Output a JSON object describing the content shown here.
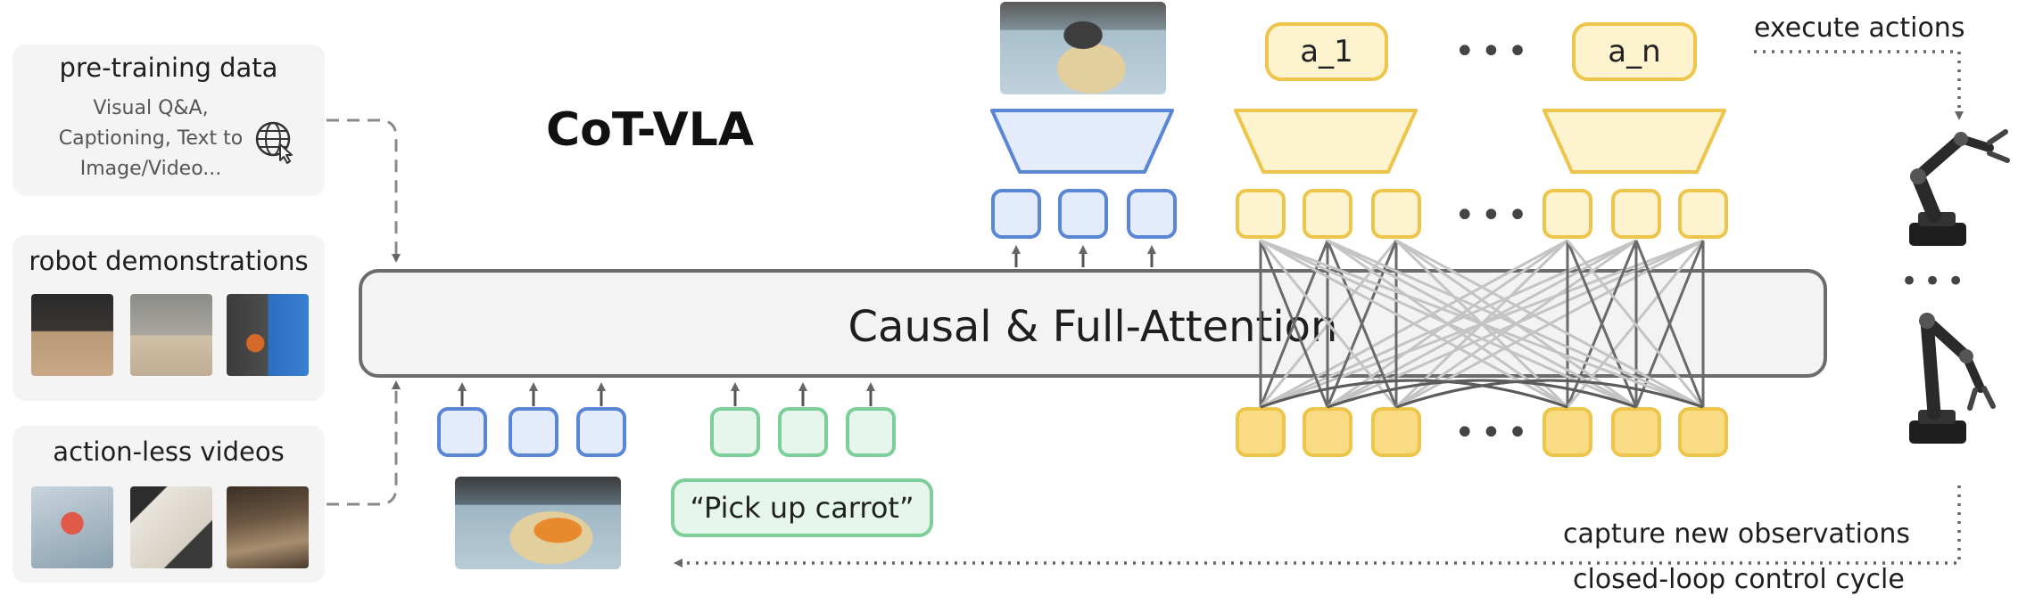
{
  "title": "CoT-VLA",
  "panels": {
    "pretraining": {
      "title": "pre-training data",
      "lines": [
        "Visual Q&A,",
        "Captioning, Text to",
        "Image/Video..."
      ],
      "icon": "globe-cursor-icon"
    },
    "robot": {
      "title": "robot demonstrations"
    },
    "actionless": {
      "title": "action-less videos"
    }
  },
  "attention_label": "Causal & Full-Attention",
  "prompt": "“Pick up carrot”",
  "actions": {
    "first": "a_1",
    "last": "a_n",
    "ellipsis": "•••"
  },
  "captions": {
    "execute": "execute actions",
    "capture": "capture new observations",
    "cycle": "closed-loop control cycle"
  },
  "colors": {
    "blue": "#5a86d6",
    "green": "#7ccf99",
    "yellow": "#ecc54a",
    "gray": "#6c6c6c"
  }
}
